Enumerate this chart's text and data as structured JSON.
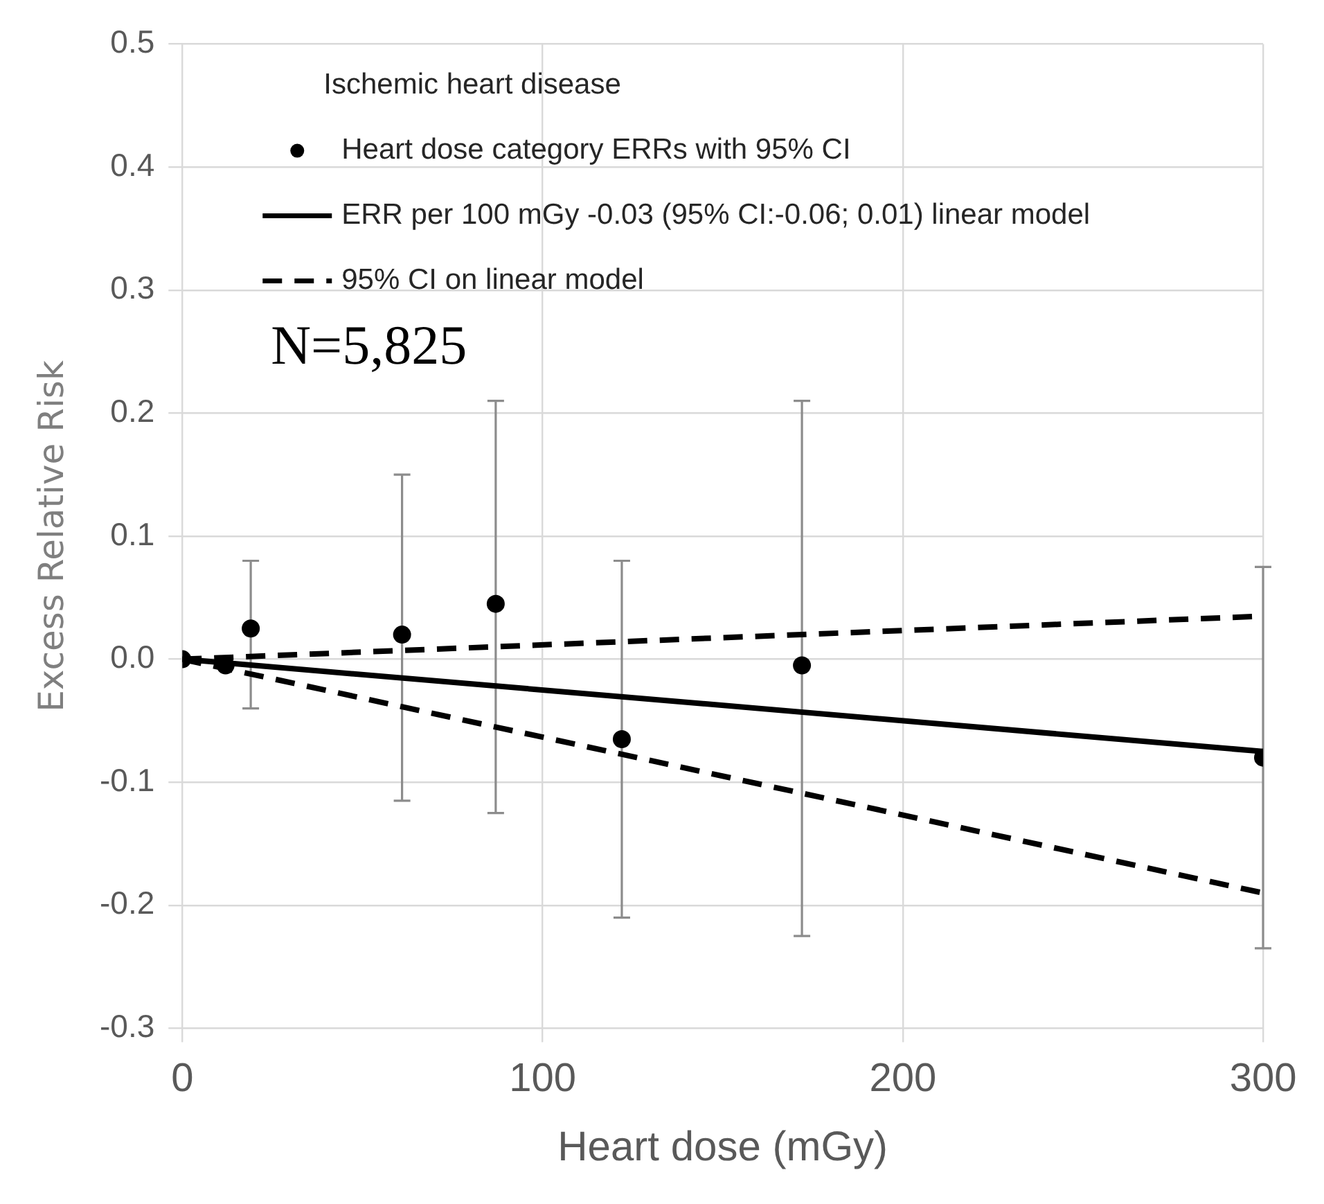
{
  "chart_data": {
    "type": "scatter",
    "xlabel": "Heart dose (mGy)",
    "ylabel": "Excess Relative Risk",
    "legend_title": "Ischemic heart disease",
    "annotations": [
      "N=5,825"
    ],
    "xlim": [
      0,
      300
    ],
    "xticks": [
      0,
      100,
      200,
      300
    ],
    "ylim": [
      -0.3,
      0.5
    ],
    "yticks": [
      -0.3,
      -0.2,
      -0.1,
      {
        "value": 0,
        "label": "0.0"
      },
      0.1,
      0.2,
      0.3,
      0.4,
      0.5
    ],
    "grid": true,
    "legend": "top left",
    "series": [
      {
        "name": "Heart dose category ERRs with 95% CI",
        "marker": "circle",
        "color": "#000000",
        "x": [
          0,
          12,
          19,
          61,
          87,
          122,
          172,
          300
        ],
        "values": [
          0,
          -0.005,
          0.025,
          0.02,
          0.045,
          -0.065,
          -0.005,
          -0.08
        ],
        "errors": [
          null,
          null,
          [
            -0.04,
            0.08
          ],
          [
            -0.115,
            0.15
          ],
          [
            -0.125,
            0.21
          ],
          [
            -0.21,
            0.08
          ],
          [
            -0.225,
            0.21
          ],
          [
            -0.235,
            0.075
          ]
        ]
      },
      {
        "name": "ERR per 100 mGy -0.03 (95% CI:-0.06; 0.01) linear model",
        "type": "line",
        "marker": "none",
        "line_style": "solid",
        "color": "#000000",
        "x": [
          0,
          300
        ],
        "values": [
          0,
          -0.075
        ]
      },
      {
        "name": "95% CI on linear model",
        "type": "line",
        "marker": "none",
        "line_style": "dashed",
        "color": "#000000",
        "x": [
          0,
          300
        ],
        "values": [
          0,
          0.035
        ]
      },
      {
        "type": "line",
        "marker": "none",
        "line_style": "dashed",
        "color": "#000000",
        "x": [
          0,
          300
        ],
        "values": [
          0,
          -0.19
        ]
      }
    ]
  }
}
